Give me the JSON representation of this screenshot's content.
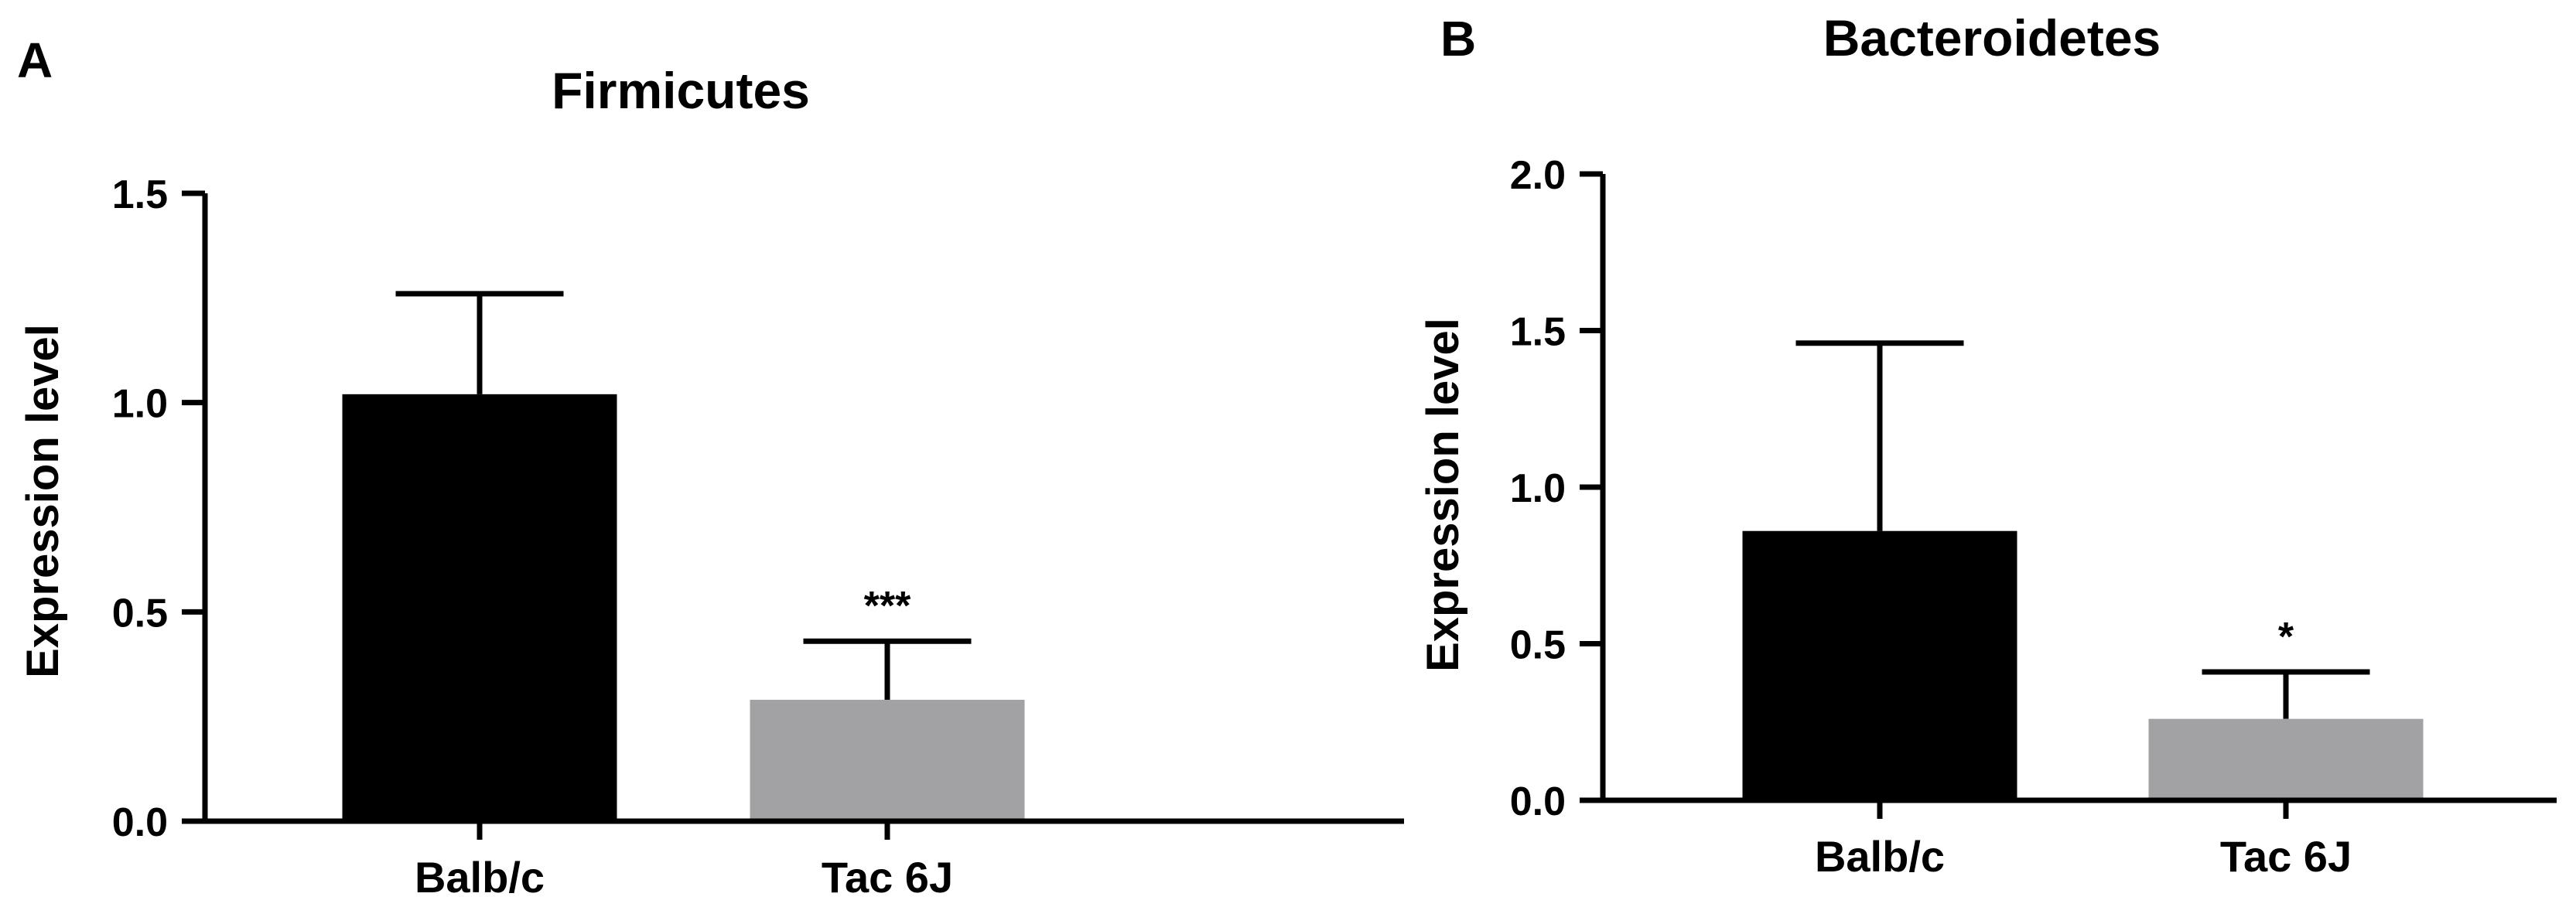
{
  "chart_data": [
    {
      "panel": "A",
      "type": "bar",
      "title": "Firmicutes",
      "xlabel": "",
      "ylabel": "Expression level",
      "categories": [
        "Balb/c",
        "Tac 6J"
      ],
      "values": [
        1.02,
        0.29
      ],
      "error_upper": [
        1.26,
        0.43
      ],
      "significance": [
        "",
        "***"
      ],
      "bar_colors": [
        "#000000",
        "#a2a2a4"
      ],
      "ylim": [
        0,
        1.5
      ],
      "yticks": [
        "0.0",
        "0.5",
        "1.0",
        "1.5"
      ],
      "grid": false
    },
    {
      "panel": "B",
      "type": "bar",
      "title": "Bacteroidetes",
      "xlabel": "",
      "ylabel": "Expression level",
      "categories": [
        "Balb/c",
        "Tac 6J"
      ],
      "values": [
        0.86,
        0.26
      ],
      "error_upper": [
        1.46,
        0.41
      ],
      "significance": [
        "",
        "*"
      ],
      "bar_colors": [
        "#000000",
        "#a2a2a4"
      ],
      "ylim": [
        0,
        2.0
      ],
      "yticks": [
        "0.0",
        "0.5",
        "1.0",
        "1.5",
        "2.0"
      ],
      "grid": false
    }
  ]
}
